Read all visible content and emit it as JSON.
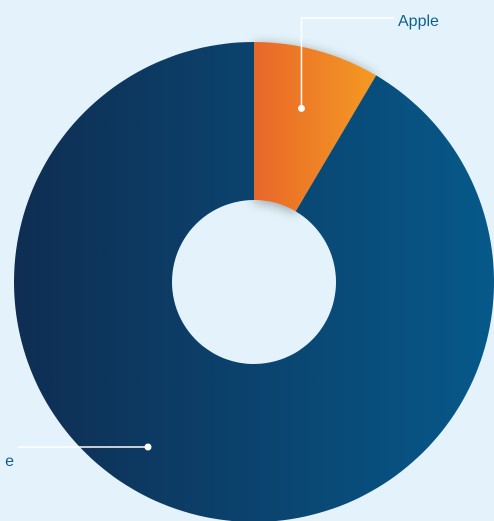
{
  "chart_data": {
    "type": "pie",
    "donut": true,
    "title": "",
    "categories": [
      "Apple",
      "e"
    ],
    "values": [
      8.5,
      91.5
    ],
    "colors": {
      "Apple": [
        "#e8672a",
        "#f59a23"
      ],
      "e": [
        "#0f2d52",
        "#06598a"
      ]
    },
    "label_color": "#0d5f8f",
    "background": "#e4f3fb",
    "legend": "none"
  }
}
